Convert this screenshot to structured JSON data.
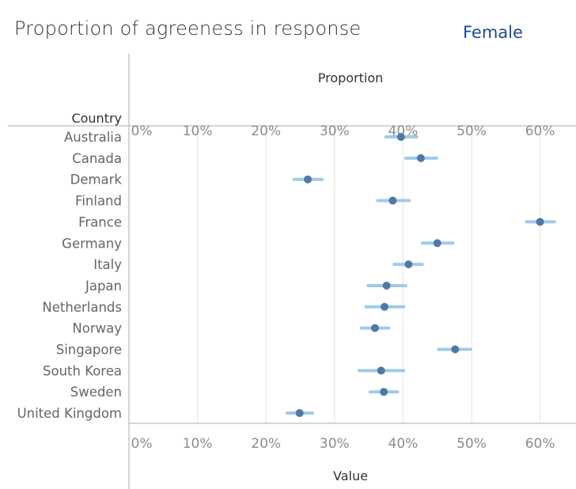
{
  "title": "Proportion of agreeness in response",
  "subtitle": "Female",
  "colors": {
    "point": "#4e79a7",
    "interval": "#a0cbe8",
    "grid": "#ececec",
    "axis": "#c8c8c8"
  },
  "chart_data": {
    "type": "scatter",
    "title": "Proportion of agreeness in response",
    "top_axis_title": "Proportion",
    "xlabel": "Value",
    "ylabel": "Country",
    "xlim": [
      0,
      65
    ],
    "xticks": [
      0,
      10,
      20,
      30,
      40,
      50,
      60
    ],
    "xtick_labels": [
      "0%",
      "10%",
      "20%",
      "30%",
      "40%",
      "50%",
      "60%"
    ],
    "grid": true,
    "categories": [
      "Australia",
      "Canada",
      "Demark",
      "Finland",
      "France",
      "Germany",
      "Italy",
      "Japan",
      "Netherlands",
      "Norway",
      "Singapore",
      "South Korea",
      "Sweden",
      "United Kingdom"
    ],
    "values": [
      39.7,
      42.6,
      26.1,
      38.5,
      60.0,
      45.0,
      40.8,
      37.6,
      37.3,
      35.9,
      47.6,
      36.8,
      37.2,
      24.9
    ],
    "lower": [
      37.5,
      40.4,
      24.1,
      36.3,
      58.0,
      42.8,
      38.7,
      34.9,
      34.6,
      33.9,
      45.2,
      33.6,
      35.2,
      23.1
    ],
    "upper": [
      42.0,
      44.9,
      28.2,
      40.9,
      62.1,
      47.3,
      42.8,
      40.4,
      40.1,
      37.9,
      49.9,
      40.1,
      39.2,
      26.8
    ]
  }
}
